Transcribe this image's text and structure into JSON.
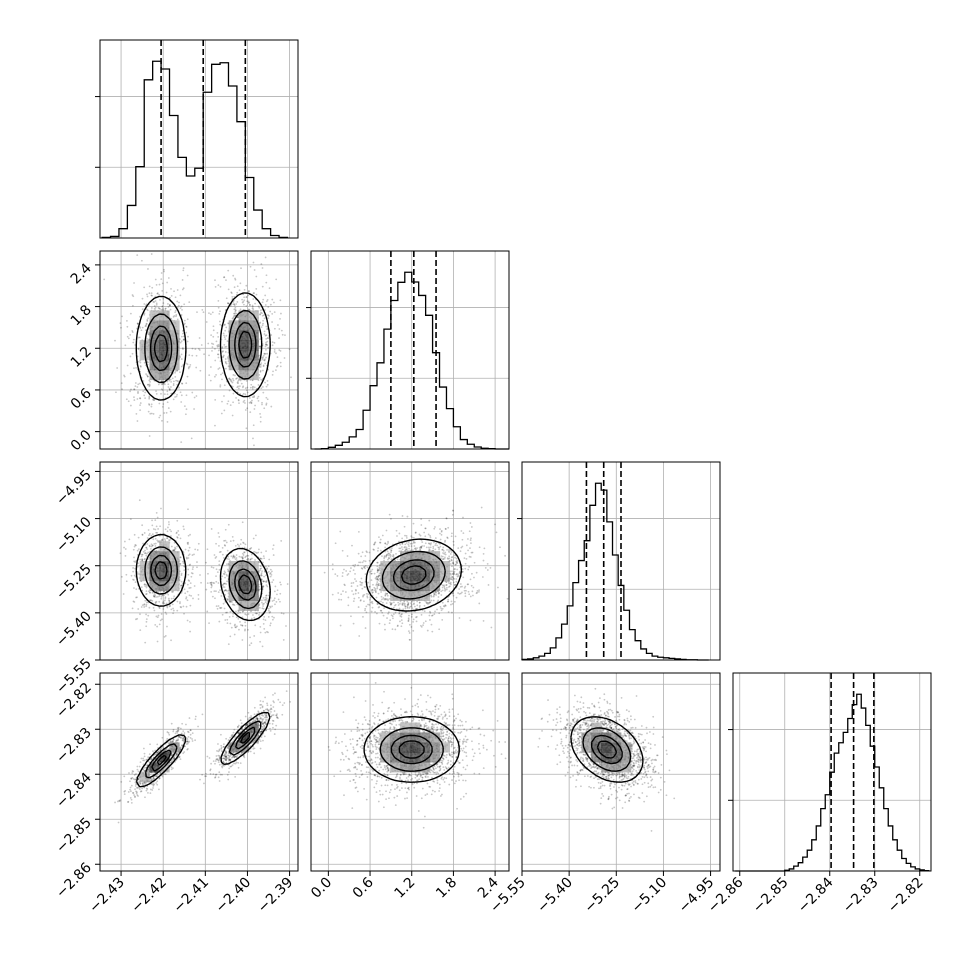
{
  "chart_data": {
    "type": "corner",
    "title": "",
    "grid": true,
    "quantiles": [
      0.16,
      0.5,
      0.84
    ],
    "parameters": [
      {
        "index": 0,
        "range": [
          -2.435,
          -2.388
        ],
        "ticks": [
          -2.43,
          -2.42,
          -2.41,
          -2.4,
          -2.39
        ],
        "tick_labels": [
          "−2.43",
          "−2.42",
          "−2.41",
          "−2.40",
          "−2.39"
        ],
        "quantile_values": [
          -2.4205,
          -2.4105,
          -2.4005
        ]
      },
      {
        "index": 1,
        "range": [
          -0.25,
          2.6
        ],
        "ticks": [
          0.0,
          0.6,
          1.2,
          1.8,
          2.4
        ],
        "tick_labels": [
          "0.0",
          "0.6",
          "1.2",
          "1.8",
          "2.4"
        ],
        "quantile_values": [
          0.9,
          1.23,
          1.55
        ]
      },
      {
        "index": 2,
        "range": [
          -5.55,
          -4.92
        ],
        "ticks": [
          -5.55,
          -5.4,
          -5.25,
          -5.1,
          -4.95
        ],
        "tick_labels": [
          "−5.55",
          "−5.40",
          "−5.25",
          "−5.10",
          "−4.95"
        ],
        "quantile_values": [
          -5.345,
          -5.29,
          -5.235
        ]
      },
      {
        "index": 3,
        "range": [
          -2.8615,
          -2.8175
        ],
        "ticks": [
          -2.86,
          -2.85,
          -2.84,
          -2.83,
          -2.82
        ],
        "tick_labels": [
          "−2.86",
          "−2.85",
          "−2.84",
          "−2.83",
          "−2.82"
        ],
        "quantile_values": [
          -2.8397,
          -2.8347,
          -2.8302
        ]
      }
    ],
    "histograms": [
      {
        "param": 0,
        "bin_centers": [
          -2.4335,
          -2.4315,
          -2.4295,
          -2.4275,
          -2.4255,
          -2.4235,
          -2.4215,
          -2.4195,
          -2.4175,
          -2.4155,
          -2.4135,
          -2.4115,
          -2.4095,
          -2.4075,
          -2.4055,
          -2.4035,
          -2.4015,
          -2.3995,
          -2.3975,
          -2.3955,
          -2.3935,
          -2.3915
        ],
        "counts": [
          2,
          5,
          30,
          105,
          230,
          510,
          570,
          545,
          395,
          260,
          200,
          225,
          470,
          560,
          565,
          490,
          375,
          195,
          90,
          30,
          8,
          2
        ]
      },
      {
        "param": 1,
        "bin_centers": [
          -0.15,
          -0.05,
          0.05,
          0.15,
          0.25,
          0.35,
          0.45,
          0.55,
          0.65,
          0.75,
          0.85,
          0.95,
          1.05,
          1.15,
          1.25,
          1.35,
          1.45,
          1.55,
          1.65,
          1.75,
          1.85,
          1.95,
          2.05,
          2.15,
          2.25,
          2.35,
          2.45,
          2.55
        ],
        "counts": [
          0,
          1,
          5,
          11,
          20,
          36,
          58,
          115,
          188,
          256,
          356,
          441,
          495,
          525,
          496,
          456,
          397,
          286,
          184,
          120,
          66,
          28,
          14,
          6,
          2,
          1,
          0,
          0
        ]
      },
      {
        "param": 2,
        "bin_centers": [
          -5.541,
          -5.523,
          -5.505,
          -5.487,
          -5.469,
          -5.451,
          -5.433,
          -5.415,
          -5.397,
          -5.379,
          -5.361,
          -5.343,
          -5.325,
          -5.307,
          -5.289,
          -5.271,
          -5.253,
          -5.235,
          -5.217,
          -5.199,
          -5.181,
          -5.163,
          -5.145,
          -5.127,
          -5.109,
          -5.091,
          -5.073,
          -5.055,
          -5.037,
          -5.019,
          -5.001,
          -4.983,
          -4.965
        ],
        "counts": [
          2,
          4,
          8,
          14,
          24,
          44,
          80,
          130,
          196,
          280,
          360,
          432,
          560,
          640,
          615,
          500,
          380,
          270,
          180,
          110,
          70,
          40,
          24,
          14,
          10,
          8,
          6,
          4,
          2,
          1,
          1,
          0,
          0
        ]
      },
      {
        "param": 3,
        "bin_centers": [
          -2.8605,
          -2.8595,
          -2.8585,
          -2.8575,
          -2.8565,
          -2.8555,
          -2.8545,
          -2.8535,
          -2.8525,
          -2.8515,
          -2.8505,
          -2.8495,
          -2.8485,
          -2.8475,
          -2.8465,
          -2.8455,
          -2.8445,
          -2.8435,
          -2.8425,
          -2.8415,
          -2.8405,
          -2.8395,
          -2.8385,
          -2.8375,
          -2.8365,
          -2.8355,
          -2.8345,
          -2.8335,
          -2.8325,
          -2.8315,
          -2.8305,
          -2.8295,
          -2.8285,
          -2.8275,
          -2.8265,
          -2.8255,
          -2.8245,
          -2.8235,
          -2.8225,
          -2.8215,
          -2.8205,
          -2.8195,
          -2.8185
        ],
        "counts": [
          0,
          0,
          0,
          0,
          0,
          0,
          0,
          0,
          0,
          0,
          0,
          2,
          6,
          14,
          24,
          40,
          60,
          90,
          130,
          180,
          220,
          285,
          340,
          370,
          400,
          440,
          480,
          510,
          470,
          420,
          360,
          300,
          240,
          180,
          130,
          90,
          60,
          36,
          22,
          12,
          6,
          3,
          1
        ]
      }
    ],
    "scatter_panels": [
      {
        "x": 0,
        "y": 1,
        "modes": [
          {
            "x": -2.4205,
            "y": 1.2,
            "sx": 0.0028,
            "sy": 0.36,
            "rho": 0.0,
            "w": 0.5
          },
          {
            "x": -2.4005,
            "y": 1.25,
            "sx": 0.0028,
            "sy": 0.36,
            "rho": 0.0,
            "w": 0.5
          }
        ]
      },
      {
        "x": 0,
        "y": 2,
        "modes": [
          {
            "x": -2.4205,
            "y": -5.265,
            "sx": 0.0028,
            "sy": 0.055,
            "rho": 0.0,
            "w": 0.5
          },
          {
            "x": -2.4005,
            "y": -5.31,
            "sx": 0.0028,
            "sy": 0.055,
            "rho": -0.2,
            "w": 0.5
          }
        ]
      },
      {
        "x": 0,
        "y": 3,
        "modes": [
          {
            "x": -2.4205,
            "y": -2.837,
            "sx": 0.0028,
            "sy": 0.0028,
            "rho": 0.85,
            "w": 0.5
          },
          {
            "x": -2.4005,
            "y": -2.832,
            "sx": 0.0028,
            "sy": 0.0028,
            "rho": 0.85,
            "w": 0.5
          }
        ]
      },
      {
        "x": 1,
        "y": 2,
        "modes": [
          {
            "x": 1.23,
            "y": -5.28,
            "sx": 0.33,
            "sy": 0.055,
            "rho": 0.15,
            "w": 1.0
          }
        ]
      },
      {
        "x": 1,
        "y": 3,
        "modes": [
          {
            "x": 1.2,
            "y": -2.8345,
            "sx": 0.33,
            "sy": 0.0035,
            "rho": 0.0,
            "w": 1.0
          }
        ]
      },
      {
        "x": 2,
        "y": 3,
        "modes": [
          {
            "x": -5.28,
            "y": -2.8345,
            "sx": 0.055,
            "sy": 0.0035,
            "rho": -0.35,
            "w": 1.0
          }
        ]
      }
    ],
    "contour_levels": [
      0.118,
      0.393,
      0.675,
      0.865
    ]
  }
}
